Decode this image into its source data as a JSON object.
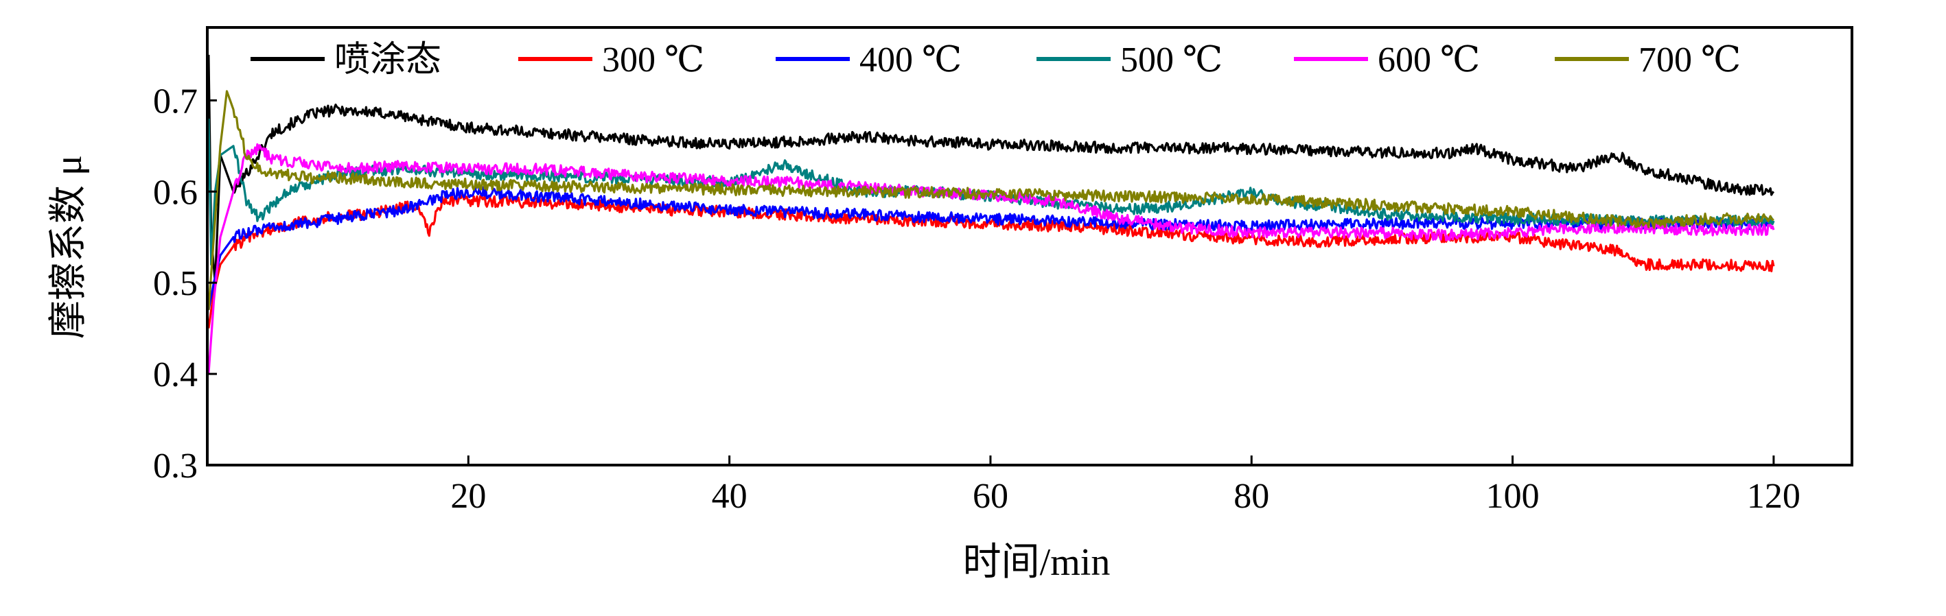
{
  "chart_data": {
    "type": "line",
    "title": "",
    "xlabel": "时间/min",
    "ylabel": "摩擦系数 μ",
    "xlim": [
      0,
      126
    ],
    "ylim": [
      0.3,
      0.78
    ],
    "x_ticks": [
      20,
      40,
      60,
      80,
      100,
      120
    ],
    "y_ticks": [
      0.3,
      0.4,
      0.5,
      0.6,
      0.7
    ],
    "x_tick_labels": [
      "20",
      "40",
      "60",
      "80",
      "100",
      "120"
    ],
    "y_tick_labels": [
      "0.3",
      "0.4",
      "0.5",
      "0.6",
      "0.7"
    ],
    "grid": false,
    "legend_position": "top",
    "series": [
      {
        "name": "喷涂态",
        "color": "#000000",
        "x": [
          0.1,
          0.3,
          0.6,
          1,
          2,
          3,
          5,
          8,
          10,
          14,
          20,
          25,
          30,
          35,
          40,
          45,
          50,
          55,
          60,
          65,
          70,
          75,
          80,
          85,
          90,
          95,
          97,
          100,
          105,
          108,
          110,
          113,
          116,
          120
        ],
        "y": [
          0.75,
          0.55,
          0.5,
          0.64,
          0.6,
          0.62,
          0.665,
          0.685,
          0.69,
          0.685,
          0.67,
          0.665,
          0.66,
          0.655,
          0.652,
          0.655,
          0.66,
          0.655,
          0.652,
          0.65,
          0.648,
          0.648,
          0.647,
          0.645,
          0.643,
          0.642,
          0.648,
          0.635,
          0.625,
          0.64,
          0.625,
          0.615,
          0.605,
          0.6
        ]
      },
      {
        "name": "300 ℃",
        "color": "#ff0000",
        "x": [
          0.1,
          0.5,
          1,
          2,
          4,
          8,
          12,
          16,
          17,
          18,
          20,
          25,
          30,
          35,
          40,
          50,
          60,
          65,
          70,
          75,
          80,
          85,
          90,
          95,
          100,
          105,
          108,
          110,
          115,
          120
        ],
        "y": [
          0.45,
          0.49,
          0.52,
          0.54,
          0.555,
          0.57,
          0.575,
          0.585,
          0.555,
          0.59,
          0.59,
          0.588,
          0.585,
          0.58,
          0.578,
          0.57,
          0.565,
          0.562,
          0.558,
          0.552,
          0.548,
          0.545,
          0.548,
          0.55,
          0.55,
          0.54,
          0.535,
          0.52,
          0.52,
          0.518
        ]
      },
      {
        "name": "400 ℃",
        "color": "#0000ff",
        "x": [
          0.1,
          0.5,
          1,
          2,
          3,
          5,
          10,
          15,
          18,
          20,
          25,
          30,
          40,
          50,
          55,
          60,
          65,
          70,
          80,
          90,
          100,
          110,
          120
        ],
        "y": [
          0.47,
          0.5,
          0.53,
          0.55,
          0.555,
          0.56,
          0.57,
          0.58,
          0.595,
          0.6,
          0.595,
          0.59,
          0.58,
          0.575,
          0.572,
          0.57,
          0.568,
          0.565,
          0.562,
          0.565,
          0.565,
          0.565,
          0.565
        ]
      },
      {
        "name": "500 ℃",
        "color": "#008080",
        "x": [
          0.1,
          0.3,
          0.6,
          1,
          2,
          3,
          4,
          6,
          10,
          15,
          20,
          30,
          40,
          44,
          46,
          50,
          55,
          60,
          70,
          75,
          80,
          82,
          90,
          100,
          110,
          120
        ],
        "y": [
          0.68,
          0.52,
          0.6,
          0.64,
          0.65,
          0.59,
          0.57,
          0.6,
          0.62,
          0.625,
          0.62,
          0.615,
          0.61,
          0.63,
          0.62,
          0.6,
          0.6,
          0.595,
          0.58,
          0.585,
          0.6,
          0.59,
          0.575,
          0.57,
          0.568,
          0.568
        ]
      },
      {
        "name": "600 ℃",
        "color": "#ff00ff",
        "x": [
          0.1,
          0.5,
          1,
          2,
          3,
          4,
          5,
          8,
          10,
          15,
          20,
          25,
          30,
          35,
          40,
          45,
          50,
          55,
          60,
          65,
          70,
          75,
          80,
          85,
          90,
          95,
          100,
          105,
          110,
          115,
          120
        ],
        "y": [
          0.4,
          0.48,
          0.55,
          0.6,
          0.64,
          0.648,
          0.635,
          0.63,
          0.625,
          0.628,
          0.625,
          0.625,
          0.62,
          0.615,
          0.612,
          0.61,
          0.605,
          0.6,
          0.595,
          0.59,
          0.57,
          0.56,
          0.555,
          0.555,
          0.555,
          0.552,
          0.555,
          0.56,
          0.56,
          0.558,
          0.558
        ]
      },
      {
        "name": "700 ℃",
        "color": "#808000",
        "x": [
          0.1,
          0.5,
          1,
          1.5,
          2,
          3,
          4,
          5,
          8,
          10,
          15,
          20,
          30,
          40,
          50,
          60,
          70,
          80,
          90,
          100,
          110,
          115,
          120
        ],
        "y": [
          0.47,
          0.55,
          0.65,
          0.71,
          0.69,
          0.64,
          0.625,
          0.62,
          0.615,
          0.615,
          0.61,
          0.608,
          0.605,
          0.602,
          0.6,
          0.598,
          0.595,
          0.592,
          0.585,
          0.578,
          0.565,
          0.57,
          0.57
        ]
      }
    ]
  }
}
